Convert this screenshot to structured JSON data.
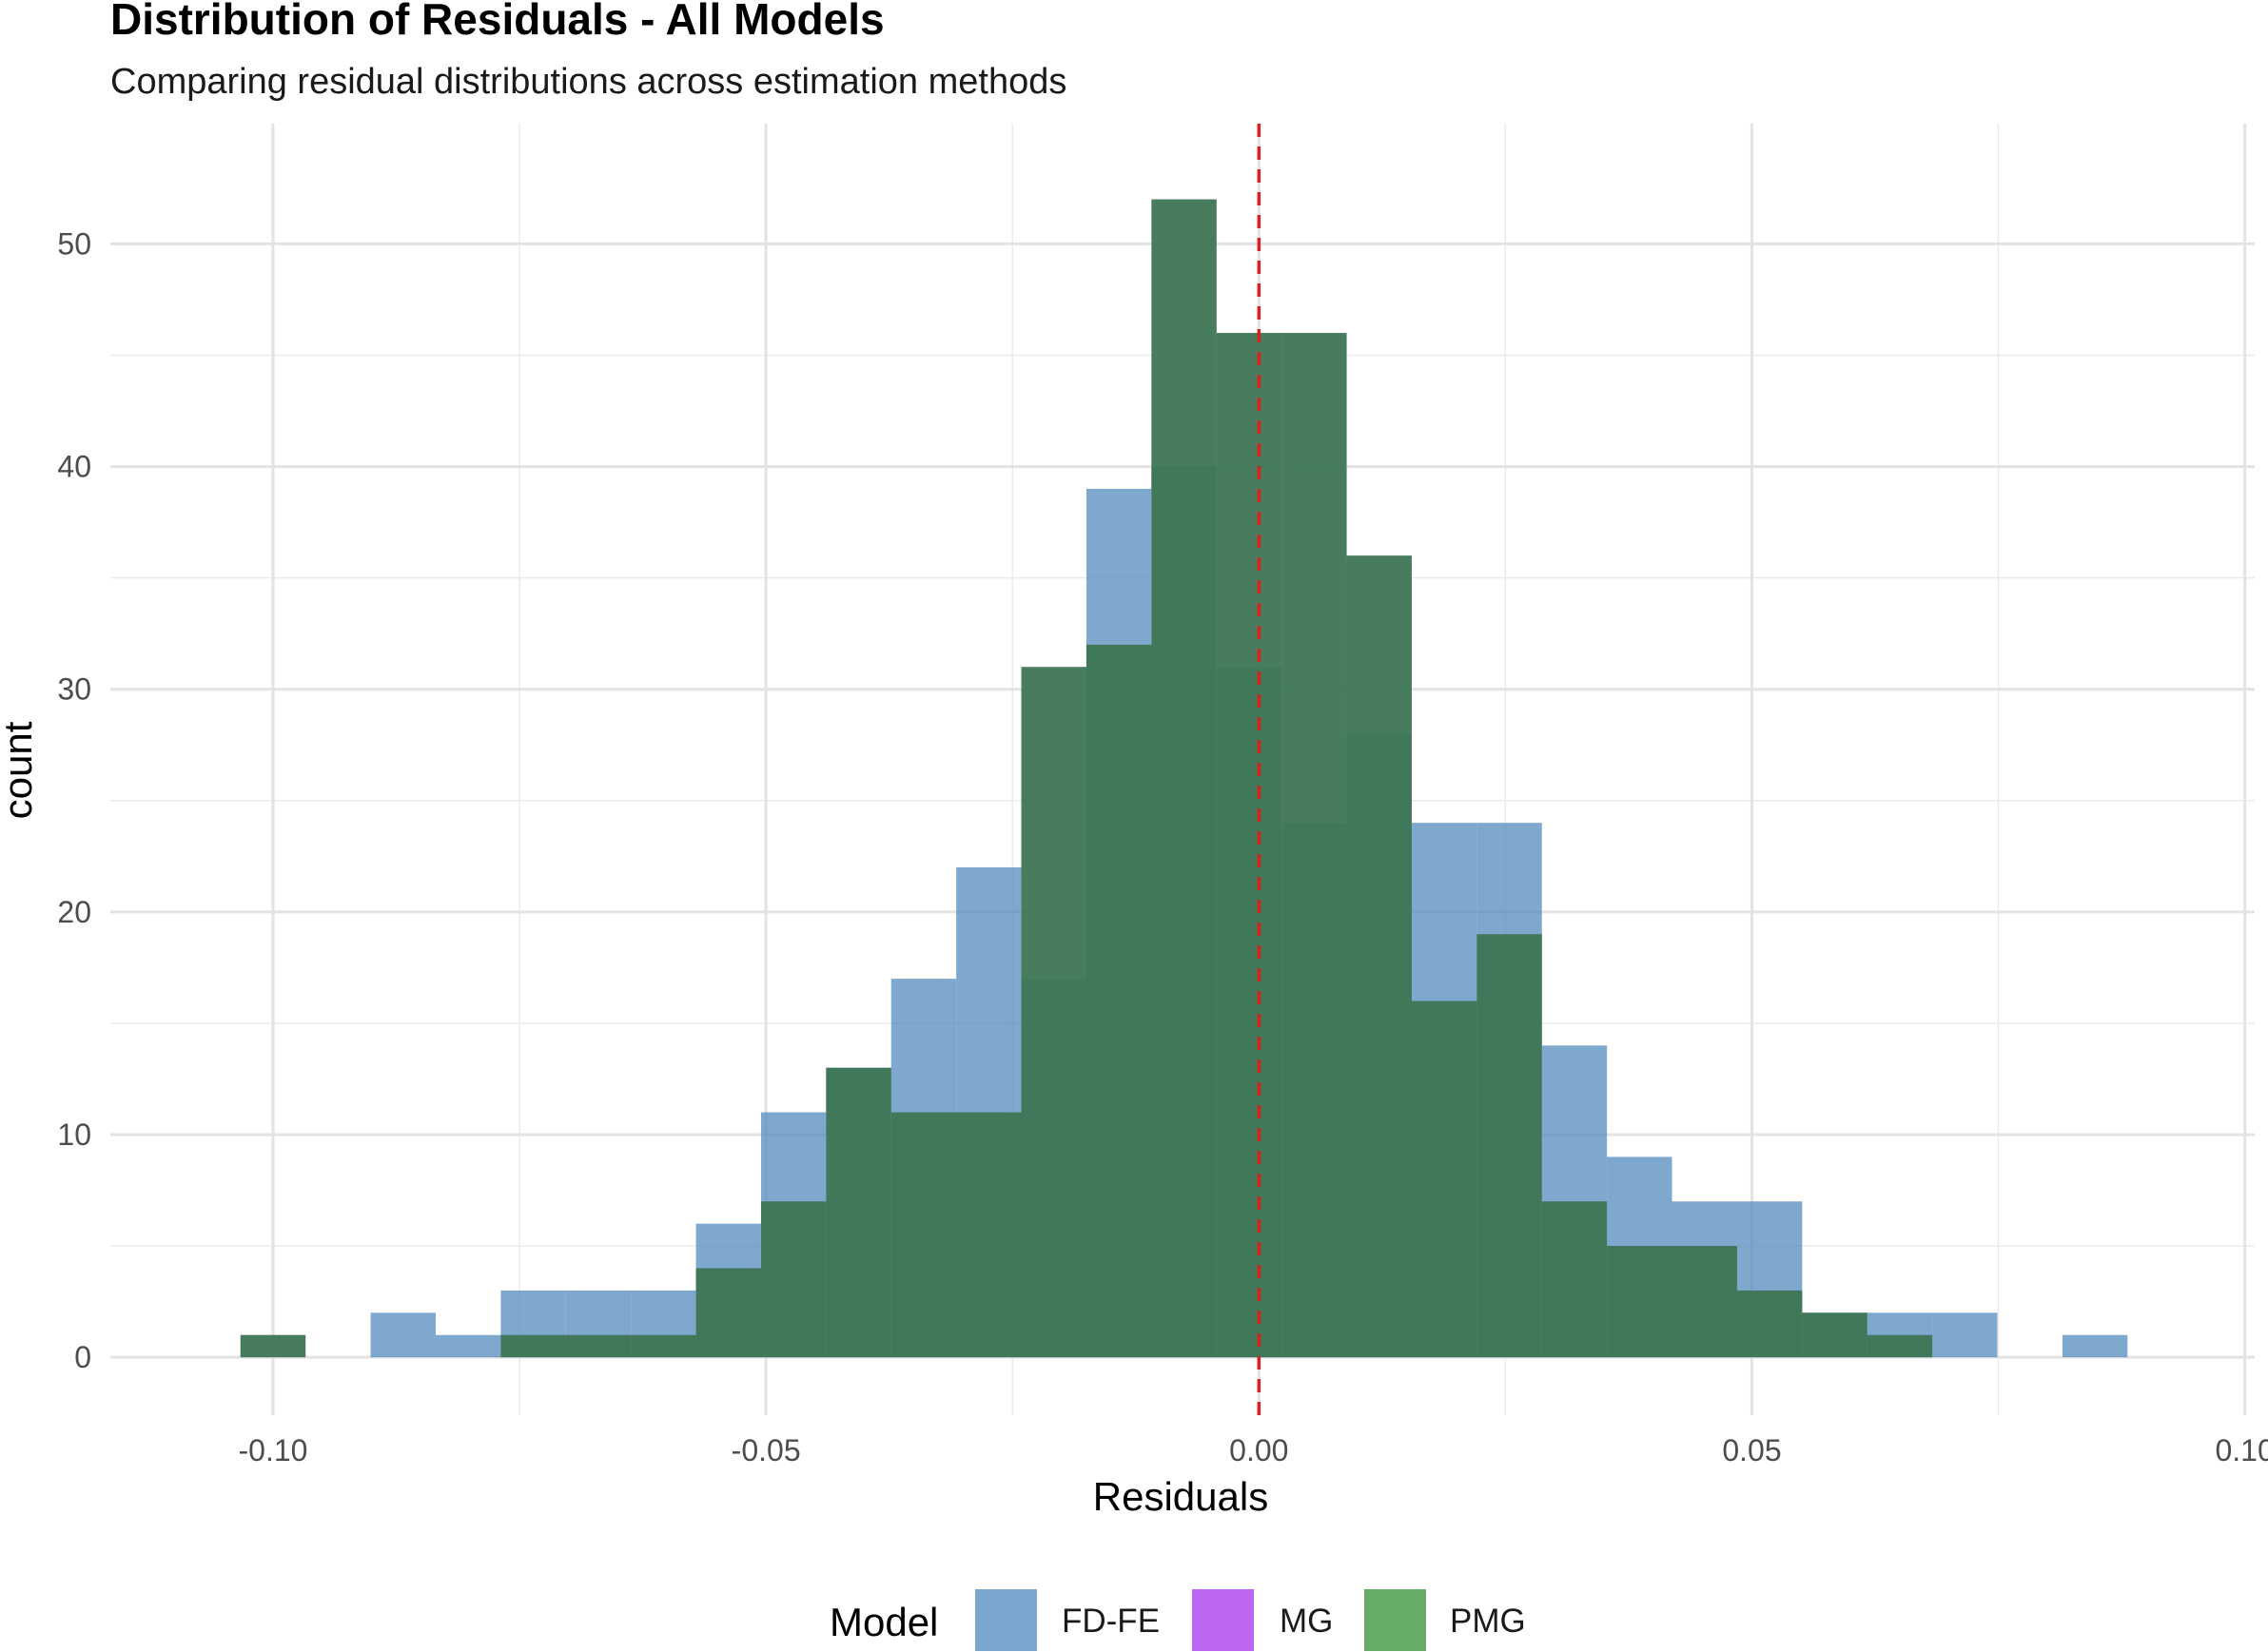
{
  "chart_data": {
    "type": "bar",
    "title": "Distribution of Residuals - All Models",
    "subtitle": "Comparing residual distributions across estimation methods",
    "xlabel": "Residuals",
    "ylabel": "count",
    "xlim": [
      -0.1165,
      0.101
    ],
    "ylim": [
      -2.6,
      55.4
    ],
    "x_ticks": [
      -0.1,
      -0.05,
      0.0,
      0.05,
      0.1
    ],
    "x_tick_labels": [
      "-0.10",
      "-0.05",
      "0.00",
      "0.05",
      "0.10"
    ],
    "y_ticks": [
      0,
      10,
      20,
      30,
      40,
      50
    ],
    "y_tick_labels": [
      "0",
      "10",
      "20",
      "30",
      "40",
      "50"
    ],
    "grid": true,
    "reference_line": {
      "x": 0,
      "color": "#dd1f1f",
      "style": "dashed"
    },
    "bin_width": 0.0066,
    "bin_centers": [
      -0.1,
      -0.0934,
      -0.0868,
      -0.0802,
      -0.0736,
      -0.067,
      -0.0604,
      -0.0538,
      -0.0472,
      -0.0406,
      -0.034,
      -0.0274,
      -0.0208,
      -0.0142,
      -0.0076,
      -0.001,
      0.0056,
      0.0122,
      0.0188,
      0.0254,
      0.032,
      0.0386,
      0.0452,
      0.0518,
      0.0584,
      0.065,
      0.0716,
      0.0782,
      0.0848,
      0.0914
    ],
    "series": [
      {
        "name": "FD-FE",
        "color": "#4e86bd",
        "opacity": 0.72,
        "values": [
          0,
          0,
          2,
          1,
          3,
          3,
          3,
          6,
          11,
          13,
          17,
          22,
          17,
          39,
          40,
          31,
          24,
          28,
          24,
          24,
          14,
          9,
          7,
          7,
          2,
          2,
          2,
          0,
          1,
          0
        ]
      },
      {
        "name": "MG",
        "color": "#b560ea",
        "opacity": 0.72,
        "values": [
          1,
          0,
          0,
          0,
          1,
          1,
          1,
          4,
          7,
          13,
          11,
          11,
          31,
          32,
          52,
          46,
          46,
          36,
          16,
          19,
          7,
          5,
          5,
          3,
          2,
          1,
          0,
          0,
          0,
          0
        ]
      },
      {
        "name": "PMG",
        "color": "#2a7a3c",
        "opacity": 0.82,
        "values": [
          1,
          0,
          0,
          0,
          1,
          1,
          1,
          4,
          7,
          13,
          11,
          11,
          31,
          32,
          52,
          46,
          46,
          36,
          16,
          19,
          7,
          5,
          5,
          3,
          2,
          1,
          0,
          0,
          0,
          0
        ]
      }
    ],
    "legend": {
      "title": "Model",
      "position": "bottom",
      "entries": [
        {
          "label": "FD-FE",
          "color": "#7ba7ce"
        },
        {
          "label": "MG",
          "color": "#bb65f0"
        },
        {
          "label": "PMG",
          "color": "#67ad68"
        }
      ]
    }
  }
}
